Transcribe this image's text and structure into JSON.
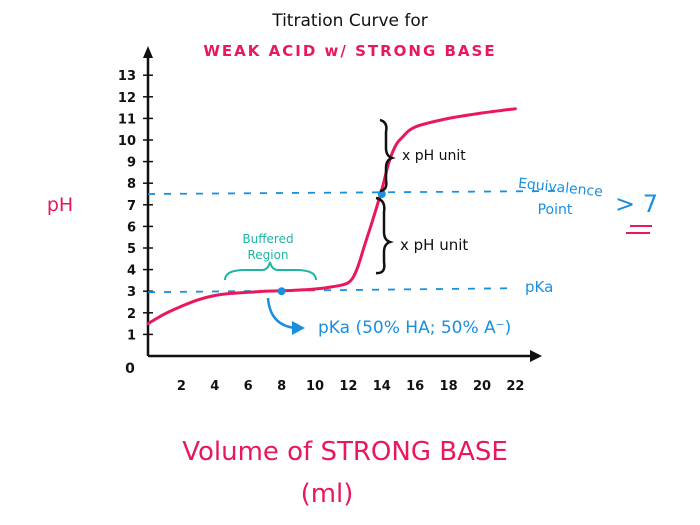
{
  "title": "Titration Curve for",
  "subtitle": "WEAK ACID w/ STRONG BASE",
  "xlabel_line1": "Volume of STRONG BASE",
  "xlabel_line2": "(ml)",
  "ylabel": "pH",
  "origin_label": "0",
  "annotations": {
    "equivalence_line1": "Equivalence",
    "equivalence_line2": "Point",
    "equivalence_value": "> 7",
    "pka_line_label": "pKa",
    "pka_note": "pKa (50% HA; 50% A⁻)",
    "buffered_line1": "Buffered",
    "buffered_line2": "Region",
    "upper_brace_note": "x pH unit",
    "lower_brace_note": "x pH unit"
  },
  "colors": {
    "curve": "#e8185a",
    "guides": "#1a8fe0",
    "buffered": "#1fb5a3",
    "axis": "#111111"
  },
  "chart_data": {
    "type": "line",
    "x_ticks": [
      "2",
      "4",
      "6",
      "8",
      "10",
      "12",
      "14",
      "16",
      "18",
      "20",
      "22"
    ],
    "y_ticks": [
      "1",
      "2",
      "3",
      "4",
      "5",
      "6",
      "7",
      "8",
      "9",
      "10",
      "11",
      "12",
      "13"
    ],
    "xlim": [
      0,
      23
    ],
    "ylim": [
      0,
      13.5
    ],
    "series": [
      {
        "x": [
          0,
          1,
          2,
          3,
          4,
          5,
          6,
          7,
          8,
          9,
          10,
          11,
          12,
          12.5,
          13,
          13.5,
          14,
          14.4,
          14.8,
          15.2,
          16,
          18,
          20,
          22
        ],
        "y": [
          1.5,
          1.95,
          2.3,
          2.6,
          2.8,
          2.9,
          2.95,
          3.0,
          3.02,
          3.05,
          3.1,
          3.2,
          3.4,
          4.0,
          5.2,
          6.4,
          7.7,
          8.9,
          9.7,
          10.1,
          10.6,
          11.0,
          11.25,
          11.45
        ]
      }
    ],
    "key_points": {
      "half_equivalence": {
        "x": 8,
        "y": 3.0
      },
      "equivalence": {
        "x": 14,
        "y": 7.7
      }
    },
    "reference_lines": {
      "pka": 3.0,
      "equivalence": 7.5
    }
  }
}
